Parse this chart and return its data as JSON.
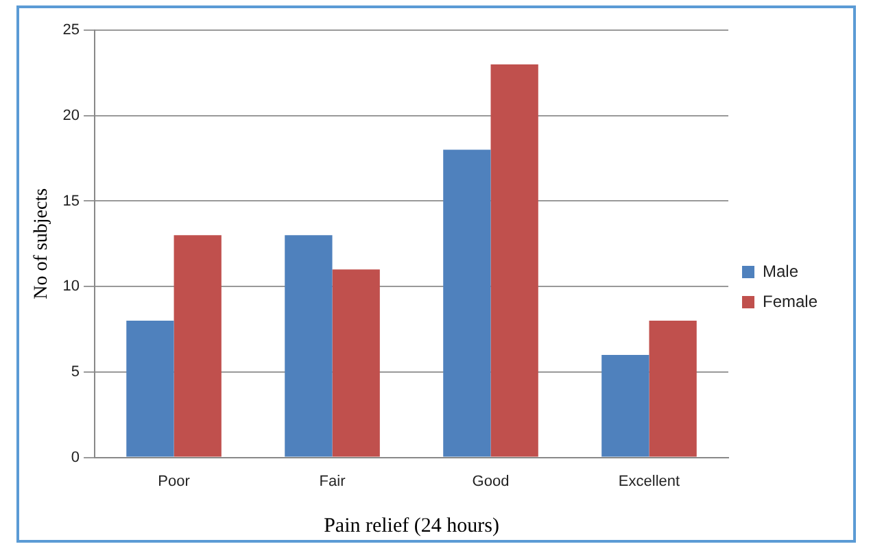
{
  "chart_data": {
    "type": "bar",
    "xlabel": "Pain relief (24 hours)",
    "ylabel": "No of subjects",
    "categories": [
      "Poor",
      "Fair",
      "Good",
      "Excellent"
    ],
    "series": [
      {
        "name": "Male",
        "color": "#4f81bd",
        "values": [
          8,
          13,
          18,
          6
        ]
      },
      {
        "name": "Female",
        "color": "#c0504d",
        "values": [
          13,
          11,
          23,
          8
        ]
      }
    ],
    "ylim": [
      0,
      25
    ],
    "yticks": [
      0,
      5,
      10,
      15,
      20,
      25
    ],
    "grid": "y",
    "legend": "right"
  }
}
